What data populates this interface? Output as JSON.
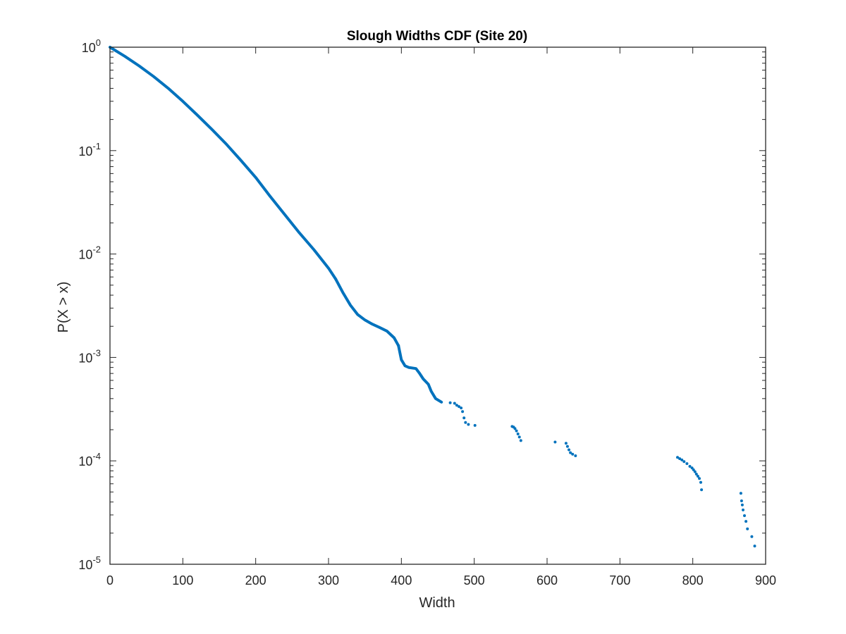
{
  "chart_data": {
    "type": "scatter",
    "title": "Slough Widths CDF (Site 20)",
    "xlabel": "Width",
    "ylabel": "P(X > x)",
    "xlim": [
      0,
      900
    ],
    "ylim": [
      1e-05,
      1
    ],
    "yscale": "log",
    "grid": false,
    "box": true,
    "marker_color": "#0072BD",
    "xticks": [
      "0",
      "100",
      "200",
      "300",
      "400",
      "500",
      "600",
      "700",
      "800",
      "900"
    ],
    "yticks": [
      {
        "base": "10",
        "exp": "0"
      },
      {
        "base": "10",
        "exp": "-1"
      },
      {
        "base": "10",
        "exp": "-2"
      },
      {
        "base": "10",
        "exp": "-3"
      },
      {
        "base": "10",
        "exp": "-4"
      },
      {
        "base": "10",
        "exp": "-5"
      }
    ],
    "series": [
      {
        "curve_segments": [
          [
            [
              0,
              1.0
            ],
            [
              20,
              0.82
            ],
            [
              40,
              0.66
            ],
            [
              60,
              0.52
            ],
            [
              80,
              0.4
            ],
            [
              100,
              0.3
            ],
            [
              120,
              0.22
            ],
            [
              140,
              0.16
            ],
            [
              160,
              0.115
            ],
            [
              180,
              0.08
            ],
            [
              200,
              0.055
            ],
            [
              220,
              0.036
            ],
            [
              240,
              0.024
            ],
            [
              260,
              0.016
            ],
            [
              280,
              0.011
            ],
            [
              300,
              0.0073
            ],
            [
              310,
              0.0057
            ]
          ],
          [
            [
              310,
              0.0057
            ],
            [
              320,
              0.0042
            ],
            [
              330,
              0.0032
            ],
            [
              340,
              0.0026
            ],
            [
              350,
              0.0023
            ],
            [
              360,
              0.0021
            ],
            [
              370,
              0.00195
            ],
            [
              380,
              0.0018
            ],
            [
              390,
              0.00155
            ],
            [
              396,
              0.0013
            ]
          ],
          [
            [
              396,
              0.0013
            ],
            [
              400,
              0.00095
            ],
            [
              405,
              0.00083
            ],
            [
              410,
              0.0008
            ],
            [
              420,
              0.00078
            ],
            [
              425,
              0.0007
            ],
            [
              430,
              0.00062
            ],
            [
              437,
              0.00055
            ],
            [
              441,
              0.00047
            ],
            [
              447,
              0.0004
            ],
            [
              455,
              0.00037
            ]
          ]
        ],
        "points": [
          [
            467,
            0.000365
          ],
          [
            473,
            0.00036
          ],
          [
            476,
            0.000345
          ],
          [
            479,
            0.000335
          ],
          [
            482,
            0.000325
          ],
          [
            484,
            0.0003
          ],
          [
            486,
            0.00026
          ],
          [
            488,
            0.000235
          ],
          [
            492,
            0.000225
          ],
          [
            501,
            0.00022
          ],
          [
            552,
            0.000215
          ],
          [
            554,
            0.000212
          ],
          [
            556,
            0.000205
          ],
          [
            558,
            0.000195
          ],
          [
            560,
            0.000182
          ],
          [
            562,
            0.00017
          ],
          [
            564,
            0.000157
          ],
          [
            611,
            0.000152
          ],
          [
            626,
            0.000148
          ],
          [
            628,
            0.000138
          ],
          [
            630,
            0.000128
          ],
          [
            632,
            0.00012
          ],
          [
            635,
            0.000116
          ],
          [
            639,
            0.000112
          ],
          [
            779,
            0.000108
          ],
          [
            782,
            0.000105
          ],
          [
            785,
            0.000102
          ],
          [
            788,
            9.85e-05
          ],
          [
            792,
            9.4e-05
          ],
          [
            796,
            8.85e-05
          ],
          [
            799,
            8.55e-05
          ],
          [
            801,
            8.2e-05
          ],
          [
            803,
            7.85e-05
          ],
          [
            805,
            7.45e-05
          ],
          [
            807,
            7.1e-05
          ],
          [
            809,
            6.75e-05
          ],
          [
            811,
            6.2e-05
          ],
          [
            812,
            5.25e-05
          ],
          [
            866,
            4.85e-05
          ],
          [
            867,
            4.1e-05
          ],
          [
            868,
            3.75e-05
          ],
          [
            869,
            3.35e-05
          ],
          [
            871,
            2.95e-05
          ],
          [
            873,
            2.6e-05
          ],
          [
            875,
            2.2e-05
          ],
          [
            881,
            1.85e-05
          ],
          [
            885,
            1.5e-05
          ]
        ]
      }
    ]
  }
}
